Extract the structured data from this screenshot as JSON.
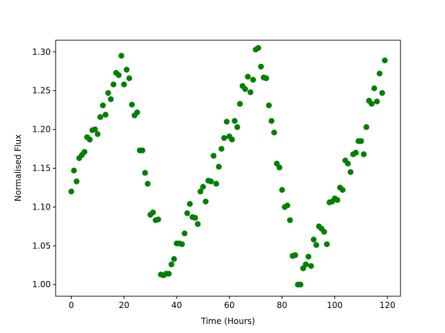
{
  "chart_data": {
    "type": "scatter",
    "x_label": "Time (Hours)",
    "y_label": "Normalised Flux",
    "color": "#008000",
    "x": [
      0,
      1,
      2,
      3,
      4,
      5,
      6,
      7,
      8,
      9,
      10,
      11,
      12,
      13,
      14,
      15,
      16,
      17,
      18,
      19,
      20,
      21,
      22,
      23,
      24,
      25,
      26,
      27,
      28,
      29,
      30,
      31,
      32,
      33,
      34,
      35,
      36,
      37,
      38,
      39,
      40,
      41,
      42,
      43,
      44,
      45,
      46,
      47,
      48,
      49,
      50,
      51,
      52,
      53,
      54,
      55,
      56,
      57,
      58,
      59,
      60,
      61,
      62,
      63,
      64,
      65,
      66,
      67,
      68,
      69,
      70,
      71,
      72,
      73,
      74,
      75,
      76,
      77,
      78,
      79,
      80,
      81,
      82,
      83,
      84,
      85,
      86,
      87,
      88,
      89,
      90,
      91,
      92,
      93,
      94,
      95,
      96,
      97,
      98,
      99,
      100,
      101,
      102,
      103,
      104,
      105,
      106,
      107,
      108,
      109,
      110,
      111,
      112,
      113,
      114,
      115,
      116,
      117,
      118,
      119
    ],
    "values": [
      1.12,
      1.147,
      1.133,
      1.163,
      1.167,
      1.171,
      1.19,
      1.187,
      1.199,
      1.2,
      1.194,
      1.216,
      1.231,
      1.219,
      1.247,
      1.239,
      1.258,
      1.273,
      1.27,
      1.295,
      1.258,
      1.277,
      1.266,
      1.232,
      1.218,
      1.222,
      1.173,
      1.173,
      1.144,
      1.13,
      1.09,
      1.093,
      1.083,
      1.084,
      1.013,
      1.012,
      1.014,
      1.014,
      1.026,
      1.033,
      1.053,
      1.053,
      1.052,
      1.066,
      1.092,
      1.104,
      1.087,
      1.086,
      1.078,
      1.12,
      1.126,
      1.107,
      1.134,
      1.133,
      1.166,
      1.13,
      1.152,
      1.175,
      1.189,
      1.21,
      1.191,
      1.187,
      1.211,
      1.203,
      1.233,
      1.256,
      1.252,
      1.268,
      1.248,
      1.264,
      1.303,
      1.305,
      1.281,
      1.267,
      1.266,
      1.231,
      1.211,
      1.196,
      1.156,
      1.151,
      1.122,
      1.1,
      1.102,
      1.083,
      1.037,
      1.038,
      1.0,
      1.0,
      1.021,
      1.026,
      1.036,
      1.024,
      1.058,
      1.051,
      1.075,
      1.072,
      1.068,
      1.052,
      1.106,
      1.107,
      1.111,
      1.109,
      1.125,
      1.122,
      1.16,
      1.156,
      1.145,
      1.168,
      1.17,
      1.185,
      1.185,
      1.168,
      1.203,
      1.237,
      1.233,
      1.253,
      1.236,
      1.272,
      1.247,
      1.289
    ],
    "xlim": [
      -5.95,
      124.95
    ],
    "xticks": [
      0,
      20,
      40,
      60,
      80,
      100,
      120
    ],
    "ylim": [
      0.985,
      1.315
    ],
    "yticks": [
      {
        "value": 1.0,
        "label": "1.00"
      },
      {
        "value": 1.05,
        "label": "1.05"
      },
      {
        "value": 1.1,
        "label": "1.10"
      },
      {
        "value": 1.15,
        "label": "1.15"
      },
      {
        "value": 1.2,
        "label": "1.20"
      },
      {
        "value": 1.25,
        "label": "1.25"
      },
      {
        "value": 1.3,
        "label": "1.30"
      }
    ]
  }
}
